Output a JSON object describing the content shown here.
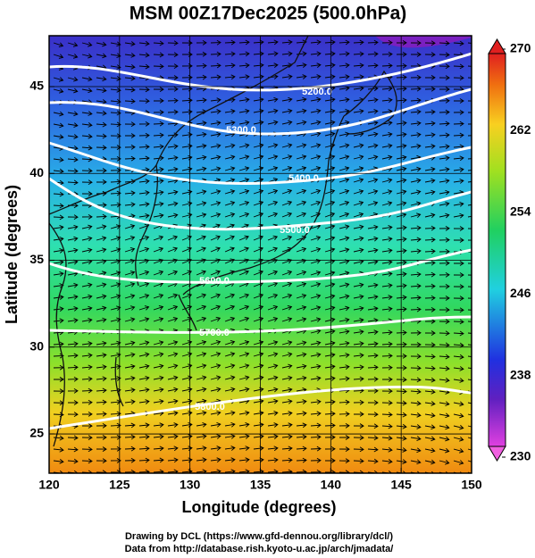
{
  "map": {
    "title": "MSM 00Z17Dec2025 (500.0hPa)",
    "xlabel": "Longitude (degrees)",
    "ylabel": "Latitude  (degrees)",
    "xlim": [
      120,
      150
    ],
    "ylim": [
      22.74,
      47.93
    ],
    "xticks": [
      120,
      125,
      130,
      135,
      140,
      145,
      150
    ],
    "yticks": [
      25,
      30,
      35,
      40,
      45
    ],
    "colorbar": {
      "lim": [
        230,
        270
      ],
      "ticks": [
        230,
        238,
        246,
        254,
        262,
        270
      ]
    },
    "contour_labels": [
      "5200.0",
      "5300.0",
      "5400.0",
      "5500.0",
      "5600.0",
      "5700.0",
      "5800.0"
    ],
    "credits": [
      "Drawing by DCL (https://www.gfd-dennou.org/library/dcl/)",
      "Data from http://database.rish.kyoto-u.ac.jp/arch/jmadata/"
    ]
  }
}
